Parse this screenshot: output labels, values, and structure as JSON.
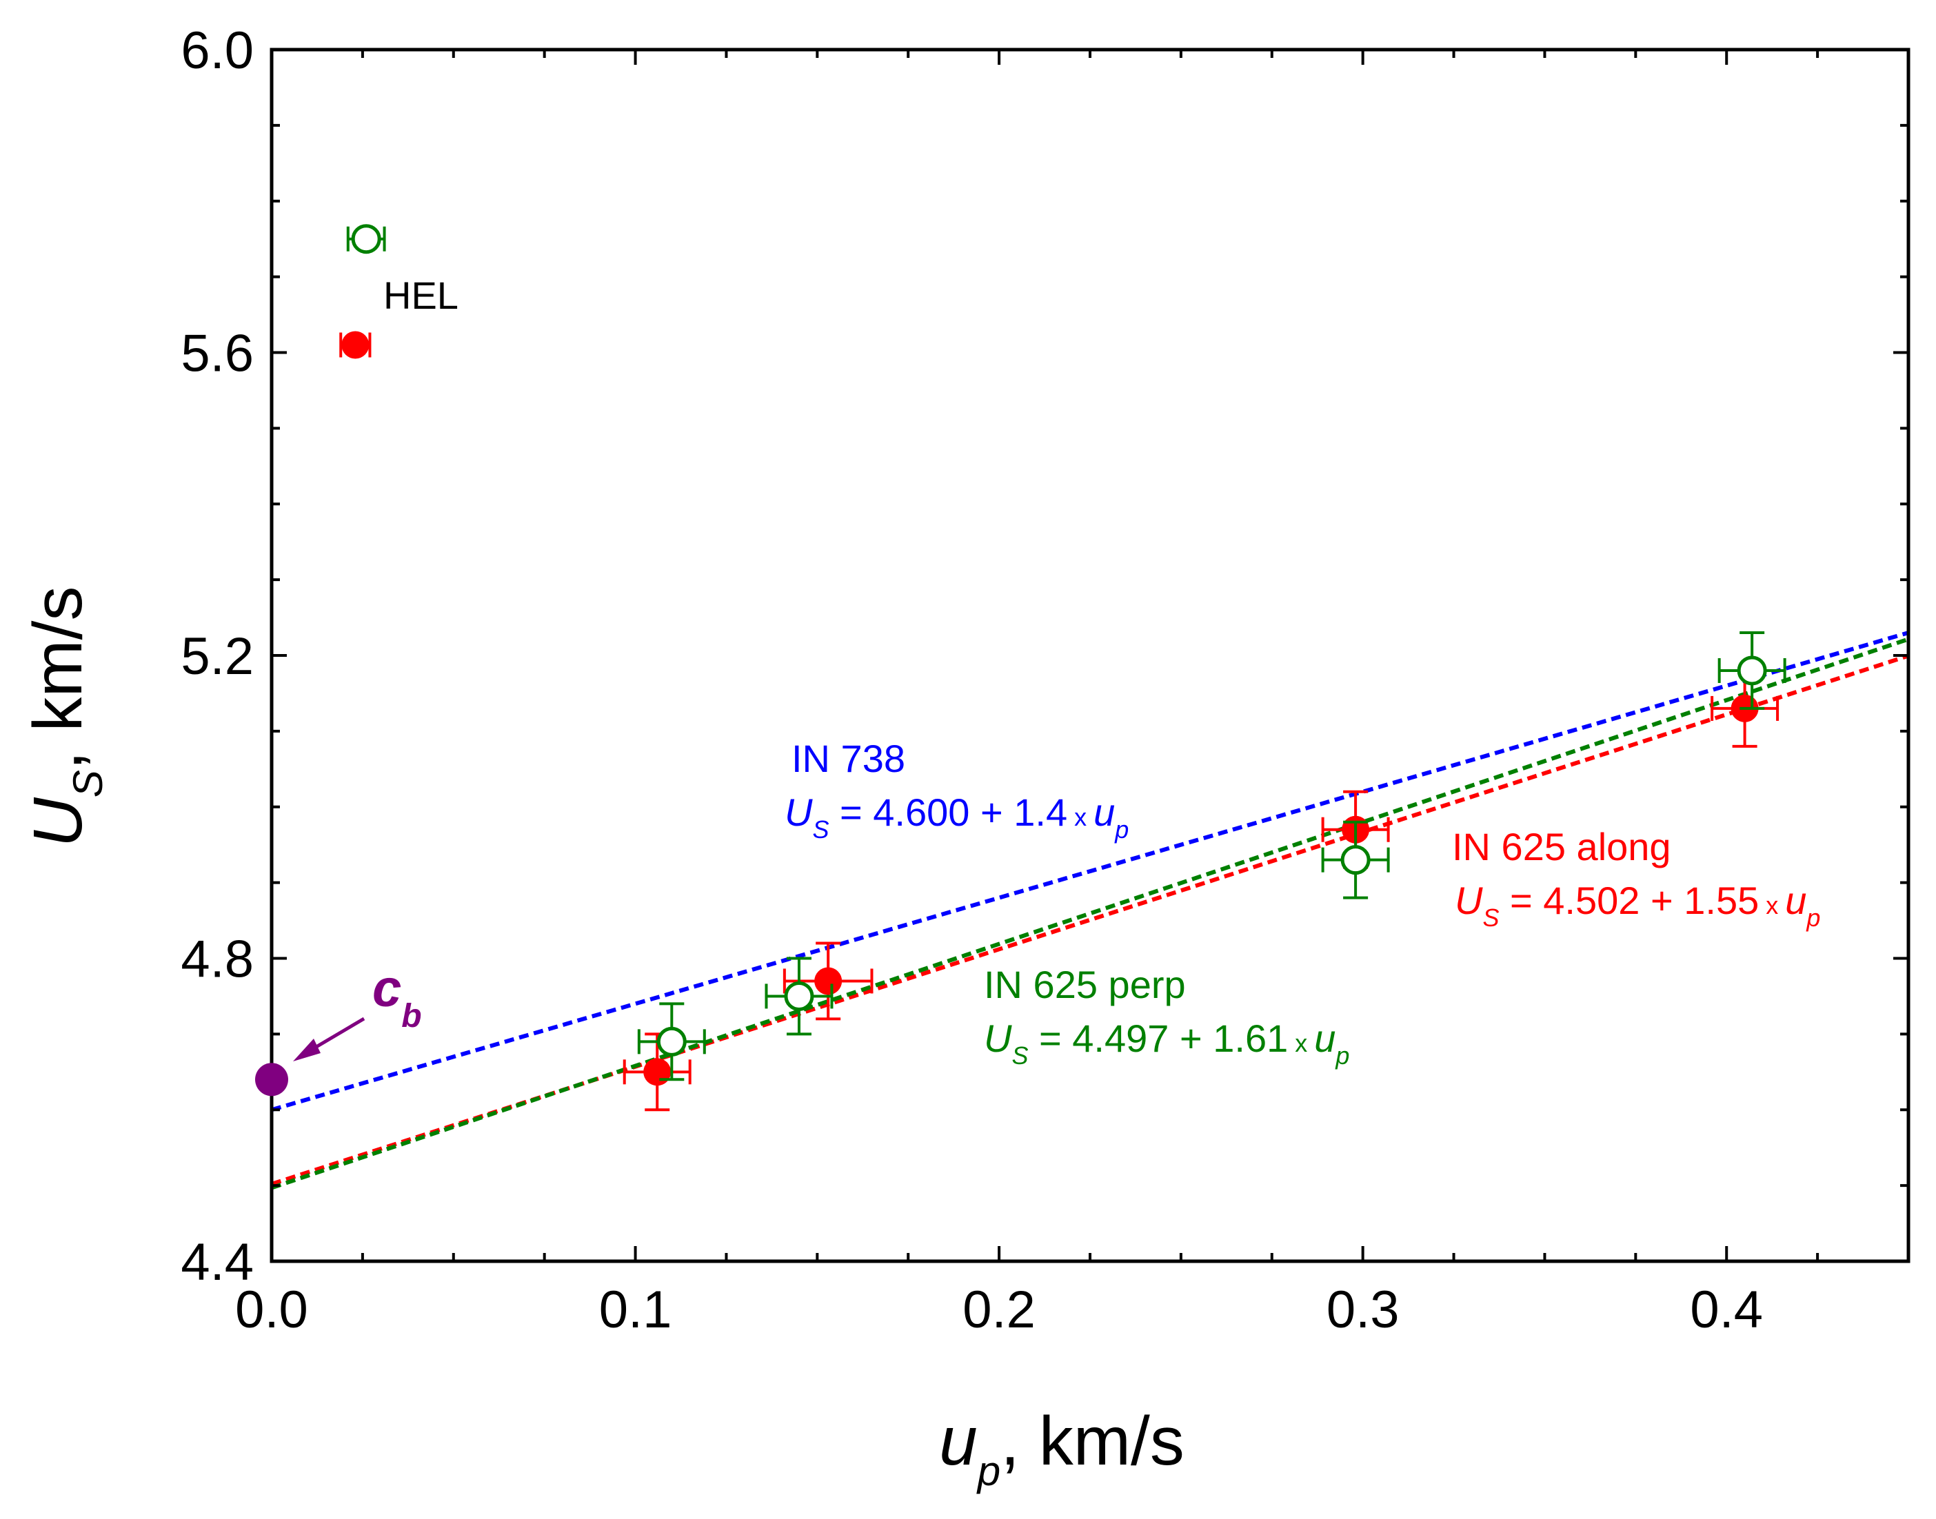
{
  "chart_data": {
    "type": "scatter",
    "xlabel": {
      "main": "u",
      "sub": "p",
      "rest": ", km/s"
    },
    "ylabel": {
      "main": "U",
      "sub": "S",
      "rest": ", km/s"
    },
    "xlim": [
      0.0,
      0.45
    ],
    "ylim": [
      4.4,
      6.0
    ],
    "x_ticks": [
      {
        "value": 0.0,
        "label": "0.0"
      },
      {
        "value": 0.1,
        "label": "0.1"
      },
      {
        "value": 0.2,
        "label": "0.2"
      },
      {
        "value": 0.3,
        "label": "0.3"
      },
      {
        "value": 0.4,
        "label": "0.4"
      }
    ],
    "x_minor_step": 0.025,
    "y_ticks": [
      {
        "value": 4.4,
        "label": "4.4"
      },
      {
        "value": 4.8,
        "label": "4.8"
      },
      {
        "value": 5.2,
        "label": "5.2"
      },
      {
        "value": 5.6,
        "label": "5.6"
      },
      {
        "value": 6.0,
        "label": "6.0"
      }
    ],
    "y_minor_step": 0.1,
    "grid": false,
    "series": [
      {
        "name": "IN 625 along",
        "color": "#ff0000",
        "marker": "filled-circle",
        "points": [
          {
            "x": 0.106,
            "y": 4.65,
            "xerr": 0.009,
            "yerr": 0.05
          },
          {
            "x": 0.153,
            "y": 4.77,
            "xerr": 0.012,
            "yerr": 0.05
          },
          {
            "x": 0.298,
            "y": 4.97,
            "xerr": 0.009,
            "yerr": 0.05
          },
          {
            "x": 0.405,
            "y": 5.13,
            "xerr": 0.009,
            "yerr": 0.05
          },
          {
            "x": 0.023,
            "y": 5.61,
            "xerr": 0.004,
            "yerr": 0.0
          }
        ]
      },
      {
        "name": "IN 625 perp",
        "color": "#008000",
        "marker": "open-circle",
        "points": [
          {
            "x": 0.11,
            "y": 4.69,
            "xerr": 0.009,
            "yerr": 0.05
          },
          {
            "x": 0.145,
            "y": 4.75,
            "xerr": 0.009,
            "yerr": 0.05
          },
          {
            "x": 0.298,
            "y": 4.93,
            "xerr": 0.009,
            "yerr": 0.05
          },
          {
            "x": 0.407,
            "y": 5.18,
            "xerr": 0.009,
            "yerr": 0.05
          },
          {
            "x": 0.026,
            "y": 5.75,
            "xerr": 0.005,
            "yerr": 0.0
          }
        ]
      },
      {
        "name": "c_b",
        "color": "#800080",
        "marker": "filled-circle-large",
        "points": [
          {
            "x": 0.0,
            "y": 4.64,
            "xerr": 0.0,
            "yerr": 0.0
          }
        ]
      }
    ],
    "fits": [
      {
        "color": "#0000ff",
        "intercept": 4.6,
        "slope": 1.4
      },
      {
        "color": "#ff0000",
        "intercept": 4.502,
        "slope": 1.55
      },
      {
        "color": "#008000",
        "intercept": 4.497,
        "slope": 1.61
      }
    ],
    "annotations": {
      "hel": "HEL",
      "cb": {
        "main": "c",
        "sub": "b"
      },
      "in738": {
        "title": "IN 738",
        "eq_lhs": "U",
        "eq_lhs_sub": "S",
        "eq_mid": " = 4.600 + 1.4",
        "eq_times": " x ",
        "eq_rhs": "u",
        "eq_rhs_sub": "p",
        "color": "#0000ff"
      },
      "in625along": {
        "title": "IN 625 along",
        "eq_lhs": "U",
        "eq_lhs_sub": "S",
        "eq_mid": " = 4.502 + 1.55",
        "eq_times": " x ",
        "eq_rhs": "u",
        "eq_rhs_sub": "p",
        "color": "#ff0000"
      },
      "in625perp": {
        "title": "IN 625 perp",
        "eq_lhs": "U",
        "eq_lhs_sub": "S",
        "eq_mid": " = 4.497 + 1.61",
        "eq_times": " x ",
        "eq_rhs": "u",
        "eq_rhs_sub": "p",
        "color": "#008000"
      }
    }
  }
}
